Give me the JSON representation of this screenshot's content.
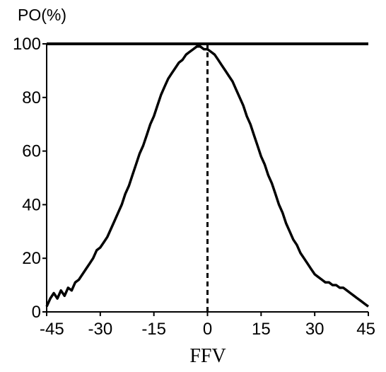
{
  "chart_data": {
    "type": "line",
    "ylabel": "PO(%)",
    "xlabel": "FFV",
    "xlim": [
      -45,
      45
    ],
    "ylim": [
      0,
      100
    ],
    "xticks": [
      -45,
      -30,
      -15,
      0,
      15,
      30,
      45
    ],
    "yticks": [
      0,
      20,
      40,
      60,
      80,
      100
    ],
    "xtick_labels": [
      "-45",
      "-30",
      "-15",
      "0",
      "15",
      "30",
      "45"
    ],
    "ytick_labels": [
      "0",
      "20",
      "40",
      "60",
      "80",
      "100"
    ],
    "grid": false,
    "reference_line": {
      "x": 0,
      "style": "dashed"
    },
    "series": [
      {
        "x": [
          -45,
          -44,
          -43,
          -42,
          -41,
          -40,
          -39,
          -38,
          -37,
          -36,
          -35,
          -34,
          -33,
          -32,
          -31,
          -30,
          -29,
          -28,
          -27,
          -26,
          -25,
          -24,
          -23,
          -22,
          -21,
          -20,
          -19,
          -18,
          -17,
          -16,
          -15,
          -14,
          -13,
          -12,
          -11,
          -10,
          -9,
          -8,
          -7,
          -6,
          -5,
          -4,
          -3,
          -2,
          -1,
          0,
          1,
          2,
          3,
          4,
          5,
          6,
          7,
          8,
          9,
          10,
          11,
          12,
          13,
          14,
          15,
          16,
          17,
          18,
          19,
          20,
          21,
          22,
          23,
          24,
          25,
          26,
          27,
          28,
          29,
          30,
          31,
          32,
          33,
          34,
          35,
          36,
          37,
          38,
          39,
          40,
          41,
          42,
          43,
          44,
          45
        ],
        "values": [
          2,
          5,
          7,
          5,
          8,
          6,
          9,
          8,
          11,
          12,
          14,
          16,
          18,
          20,
          23,
          24,
          26,
          28,
          31,
          34,
          37,
          40,
          44,
          47,
          51,
          55,
          59,
          62,
          66,
          70,
          73,
          77,
          81,
          84,
          87,
          89,
          91,
          93,
          94,
          96,
          97,
          98,
          99,
          99,
          98,
          98,
          97,
          96,
          94,
          92,
          90,
          88,
          86,
          83,
          80,
          77,
          73,
          70,
          66,
          62,
          58,
          55,
          51,
          48,
          44,
          40,
          37,
          33,
          30,
          27,
          25,
          22,
          20,
          18,
          16,
          14,
          13,
          12,
          11,
          11,
          10,
          10,
          9,
          9,
          8,
          7,
          6,
          5,
          4,
          3,
          2
        ]
      }
    ]
  }
}
